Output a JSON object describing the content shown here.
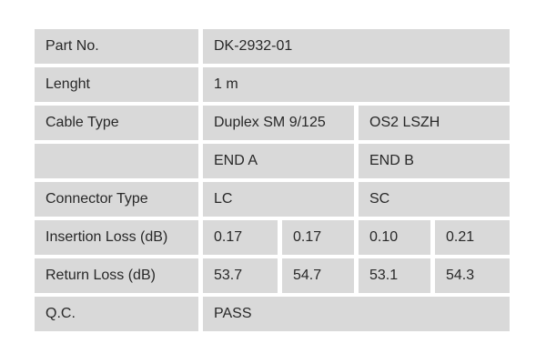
{
  "page": {
    "background_color": "#ffffff"
  },
  "table": {
    "colors": {
      "cell_background": "#d9d9d9",
      "gap": "#ffffff",
      "text": "#282828"
    },
    "part_no": {
      "label": "Part No.",
      "value": "DK-2932-01"
    },
    "length": {
      "label": "Lenght",
      "value": "1 m"
    },
    "cable_type": {
      "label": "Cable Type",
      "end_a": "Duplex SM 9/125",
      "end_b": "OS2 LSZH"
    },
    "end_headers": {
      "label": "",
      "end_a": "END A",
      "end_b": "END B"
    },
    "connector_type": {
      "label": "Connector Type",
      "end_a": "LC",
      "end_b": "SC"
    },
    "insertion_loss": {
      "label": "Insertion Loss (dB)",
      "values": [
        "0.17",
        "0.17",
        "0.10",
        "0.21"
      ]
    },
    "return_loss": {
      "label": "Return Loss (dB)",
      "values": [
        "53.7",
        "54.7",
        "53.1",
        "54.3"
      ]
    },
    "qc": {
      "label": "Q.C.",
      "value": "PASS"
    }
  }
}
